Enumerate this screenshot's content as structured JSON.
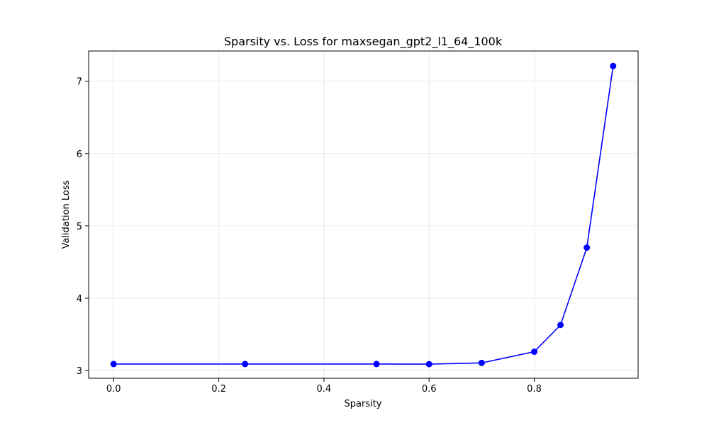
{
  "chart_data": {
    "type": "line",
    "title": "Sparsity vs. Loss for maxsegan_gpt2_l1_64_100k",
    "xlabel": "Sparsity",
    "ylabel": "Validation Loss",
    "xlim": [
      -0.0475,
      0.9975
    ],
    "ylim": [
      2.893,
      7.418
    ],
    "xticks": [
      0.0,
      0.2,
      0.4,
      0.6,
      0.8
    ],
    "xtick_labels": [
      "0.0",
      "0.2",
      "0.4",
      "0.6",
      "0.8"
    ],
    "yticks": [
      3,
      4,
      5,
      6,
      7
    ],
    "ytick_labels": [
      "3",
      "4",
      "5",
      "6",
      "7"
    ],
    "grid": true,
    "series": [
      {
        "color": "#0000ff",
        "marker": "circle",
        "x": [
          0.0,
          0.25,
          0.5,
          0.6,
          0.7,
          0.8,
          0.85,
          0.9,
          0.95
        ],
        "y": [
          3.09,
          3.09,
          3.09,
          3.088,
          3.105,
          3.26,
          3.63,
          4.7,
          7.21
        ]
      }
    ]
  }
}
